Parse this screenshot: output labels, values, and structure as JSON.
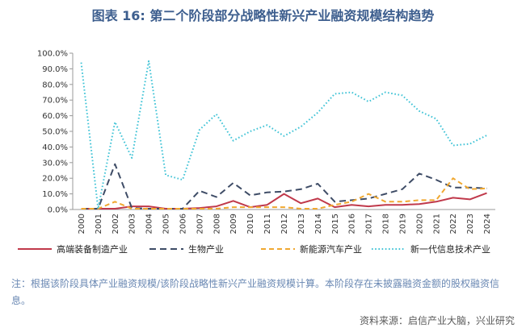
{
  "title": "图表 16: 第二个阶段部分战略性新兴产业融资规模结构趋势",
  "note": "注：根据该阶段具体产业融资规模/该阶段战略性新兴产业融资规模计算。本阶段存在未披露融资金额的股权融资信息。",
  "source": "资料来源：启信产业大脑，兴业研究",
  "chart_data": {
    "type": "line",
    "title": "图表 16: 第二个阶段部分战略性新兴产业融资规模结构趋势",
    "xlabel": "",
    "ylabel": "",
    "ylim": [
      0,
      100
    ],
    "y_unit": "%",
    "y_ticks": [
      "0.0%",
      "10.0%",
      "20.0%",
      "30.0%",
      "40.0%",
      "50.0%",
      "60.0%",
      "70.0%",
      "80.0%",
      "90.0%",
      "100.0%"
    ],
    "grid": false,
    "legend_position": "bottom",
    "x": [
      "2000",
      "2001",
      "2002",
      "2003",
      "2004",
      "2005",
      "2006",
      "2007",
      "2008",
      "2009",
      "2010",
      "2011",
      "2012",
      "2013",
      "2014",
      "2015",
      "2016",
      "2017",
      "2018",
      "2019",
      "2020",
      "2021",
      "2022",
      "2023",
      "2024"
    ],
    "series": [
      {
        "name": "高端装备制造产业",
        "color": "#c0394b",
        "dash": "solid",
        "values": [
          0.5,
          0.5,
          0.5,
          2,
          2,
          0.5,
          0.5,
          1,
          2,
          5.5,
          1.5,
          3,
          10,
          4,
          7,
          1.5,
          3,
          2,
          3,
          3,
          3.5,
          5,
          7.5,
          6.5,
          10.5
        ]
      },
      {
        "name": "生物产业",
        "color": "#3e4c66",
        "dash": "long",
        "values": [
          0.5,
          0.5,
          29,
          1,
          0.5,
          0.5,
          0.5,
          12,
          8,
          17,
          9,
          11,
          11.5,
          13,
          16.5,
          5,
          6,
          7,
          10,
          13,
          23,
          19,
          14,
          14,
          13.5
        ]
      },
      {
        "name": "新能源汽车产业",
        "color": "#f0a830",
        "dash": "medium",
        "values": [
          0.5,
          0.5,
          5,
          0.5,
          0.5,
          0.5,
          0.5,
          0.5,
          0.5,
          1.5,
          1.5,
          1.5,
          1.5,
          0.5,
          0.5,
          3,
          5,
          10,
          5,
          5,
          6,
          6,
          20,
          13,
          13.5
        ]
      },
      {
        "name": "新一代信息技术产业",
        "color": "#3fc3d6",
        "dash": "dotted",
        "values": [
          94,
          0.5,
          56,
          33,
          95,
          22,
          19,
          51,
          61,
          44,
          50,
          54,
          47,
          53,
          62,
          74,
          75,
          69,
          75,
          73,
          63,
          58,
          41,
          42,
          47.5
        ]
      }
    ]
  }
}
